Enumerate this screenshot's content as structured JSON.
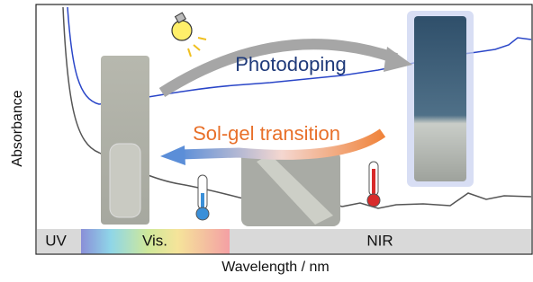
{
  "axes": {
    "y_label": "Absorbance",
    "x_label": "Wavelength / nm"
  },
  "regions": [
    "UV",
    "Vis.",
    "NIR"
  ],
  "annotations": {
    "process_forward": "Photodoping",
    "process_backward": "Sol-gel transition"
  }
}
